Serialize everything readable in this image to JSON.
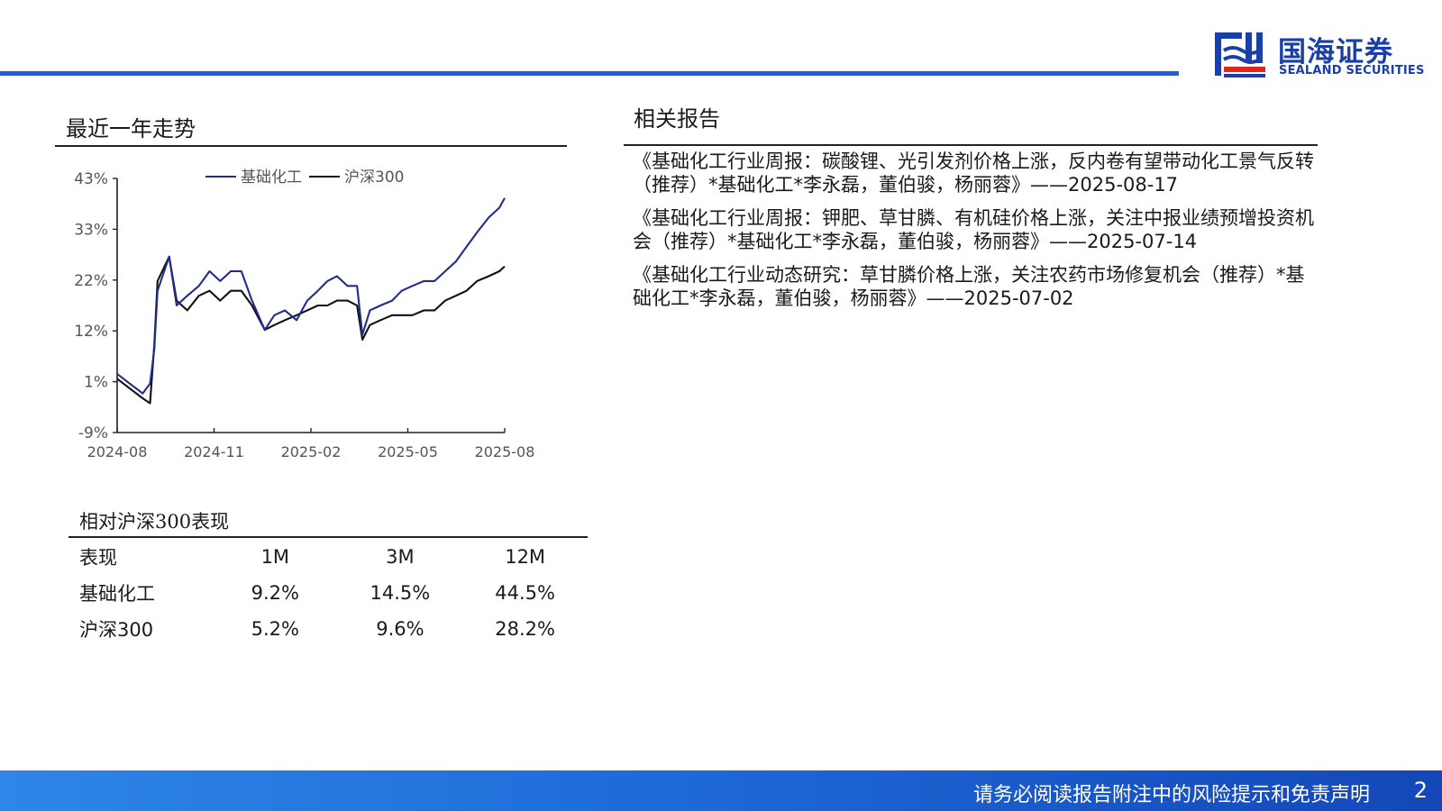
{
  "header": {
    "logo_cn": "国海证券",
    "logo_en": "SEALAND SECURITIES",
    "colors": {
      "brand": "#1b3fa6",
      "accent_bar": "#1f5fd6",
      "logo_red": "#e0251b"
    }
  },
  "left": {
    "title": "最近一年走势",
    "chart_data": {
      "type": "line",
      "title": "",
      "xlabel": "",
      "ylabel": "",
      "legend_position": "top",
      "ylim": [
        -9,
        43
      ],
      "y_ticks": [
        "43%",
        "33%",
        "22%",
        "12%",
        "1%",
        "-9%"
      ],
      "x_ticks": [
        "2024-08",
        "2024-11",
        "2025-02",
        "2025-05",
        "2025-08"
      ],
      "grid": false,
      "x": [
        "2024-08-20",
        "2024-09-01",
        "2024-09-13",
        "2024-09-20",
        "2024-09-24",
        "2024-09-27",
        "2024-10-08",
        "2024-10-15",
        "2024-10-25",
        "2024-11-05",
        "2024-11-15",
        "2024-11-25",
        "2024-12-05",
        "2024-12-15",
        "2024-12-25",
        "2025-01-06",
        "2025-01-15",
        "2025-01-25",
        "2025-02-05",
        "2025-02-15",
        "2025-02-25",
        "2025-03-06",
        "2025-03-15",
        "2025-03-25",
        "2025-04-03",
        "2025-04-08",
        "2025-04-15",
        "2025-04-25",
        "2025-05-06",
        "2025-05-15",
        "2025-05-25",
        "2025-06-05",
        "2025-06-15",
        "2025-06-25",
        "2025-07-05",
        "2025-07-15",
        "2025-07-25",
        "2025-08-05",
        "2025-08-15",
        "2025-08-20"
      ],
      "series": [
        {
          "name": "基础化工",
          "color": "#1f2e8c",
          "values": [
            3,
            1,
            -1,
            1,
            8,
            20,
            27,
            17,
            19,
            21,
            24,
            22,
            24,
            24,
            18,
            12,
            15,
            16,
            14,
            18,
            20,
            22,
            23,
            21,
            21,
            11,
            16,
            17,
            18,
            20,
            21,
            22,
            22,
            24,
            26,
            29,
            32,
            35,
            37,
            39
          ]
        },
        {
          "name": "沪深300",
          "color": "#111111",
          "values": [
            2,
            0,
            -2,
            -3,
            9,
            22,
            27,
            18,
            16,
            19,
            20,
            18,
            20,
            20,
            17,
            12,
            13,
            14,
            15,
            16,
            17,
            17,
            18,
            18,
            17,
            10,
            13,
            14,
            15,
            15,
            15,
            16,
            16,
            18,
            19,
            20,
            22,
            23,
            24,
            25
          ]
        }
      ]
    }
  },
  "performance": {
    "title": "相对沪深300表现",
    "headers": [
      "表现",
      "1M",
      "3M",
      "12M"
    ],
    "rows": [
      [
        "基础化工",
        "9.2%",
        "14.5%",
        "44.5%"
      ],
      [
        "沪深300",
        "5.2%",
        "9.6%",
        "28.2%"
      ]
    ]
  },
  "right": {
    "title": "相关报告",
    "reports": [
      "《基础化工行业周报：碳酸锂、光引发剂价格上涨，反内卷有望带动化工景气反转（推荐）*基础化工*李永磊，董伯骏，杨丽蓉》——2025-08-17",
      "《基础化工行业周报：钾肥、草甘膦、有机硅价格上涨，关注中报业绩预增投资机会（推荐）*基础化工*李永磊，董伯骏，杨丽蓉》——2025-07-14",
      "《基础化工行业动态研究：草甘膦价格上涨，关注农药市场修复机会（推荐）*基础化工*李永磊，董伯骏，杨丽蓉》——2025-07-02"
    ]
  },
  "footer": {
    "disclaimer": "请务必阅读报告附注中的风险提示和免责声明",
    "page": "2"
  }
}
